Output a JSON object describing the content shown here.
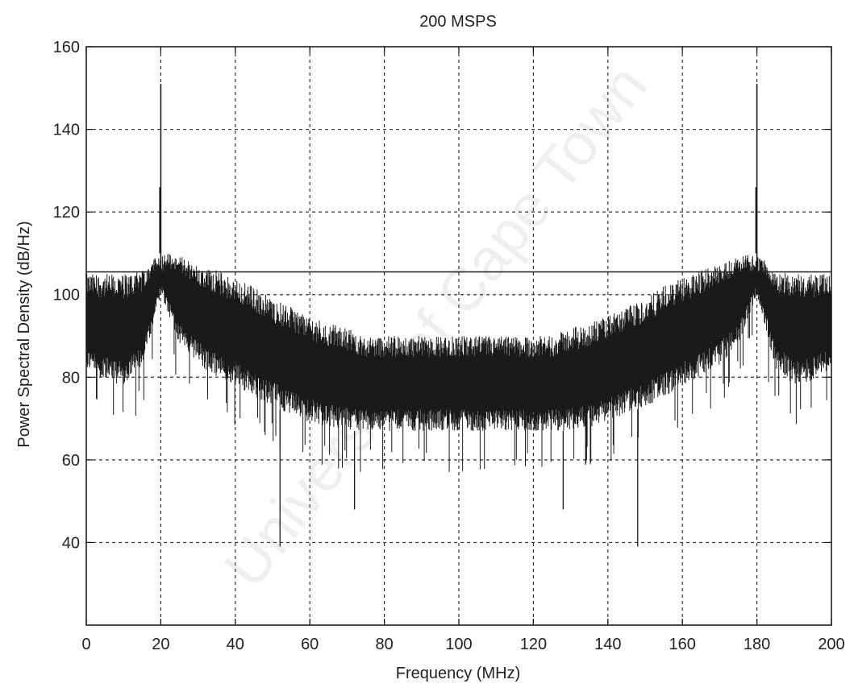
{
  "chart_data": {
    "type": "line",
    "title": "200 MSPS",
    "xlabel": "Frequency (MHz)",
    "ylabel": "Power Spectral Density (dB/Hz)",
    "xlim": [
      0,
      200
    ],
    "ylim": [
      20,
      160
    ],
    "x_ticks": [
      0,
      20,
      40,
      60,
      80,
      100,
      120,
      140,
      160,
      180,
      200
    ],
    "y_ticks": [
      40,
      60,
      80,
      100,
      120,
      140,
      160
    ],
    "grid": true,
    "grid_style": "dashed",
    "legend": null,
    "line_color": "#1a1a1a",
    "watermark": "University of Cape Town",
    "clip_level": 105.5,
    "peaks": [
      {
        "x": 20,
        "y": 151
      },
      {
        "x": 180,
        "y": 151
      }
    ],
    "series": [
      {
        "x": [
          0,
          5,
          10,
          15,
          20,
          25,
          30,
          35,
          40,
          45,
          50,
          55,
          60,
          65,
          70,
          75,
          80,
          85,
          90,
          95,
          100,
          105,
          110,
          115,
          120,
          125,
          130,
          135,
          140,
          145,
          150,
          155,
          160,
          165,
          170,
          175,
          180,
          185,
          190,
          195,
          200
        ],
        "upper": [
          105,
          105,
          105,
          106,
          111,
          110,
          108,
          106,
          104,
          102,
          99,
          97,
          95,
          93,
          92,
          90,
          90,
          90,
          90,
          90,
          90,
          90,
          90,
          90,
          90,
          90,
          92,
          93,
          95,
          97,
          99,
          102,
          104,
          106,
          108,
          110,
          111,
          106,
          105,
          105,
          105
        ],
        "lower": [
          82,
          79,
          78,
          82,
          100,
          88,
          83,
          80,
          78,
          75,
          73,
          71,
          69,
          68,
          67,
          67,
          67,
          67,
          67,
          67,
          67,
          67,
          67,
          67,
          67,
          67,
          67,
          68,
          69,
          71,
          73,
          75,
          78,
          80,
          83,
          88,
          100,
          82,
          78,
          79,
          82
        ],
        "min_dips": [
          {
            "x": 52,
            "y": 39
          },
          {
            "x": 72,
            "y": 48
          },
          {
            "x": 128,
            "y": 48
          },
          {
            "x": 148,
            "y": 39
          }
        ]
      }
    ]
  }
}
